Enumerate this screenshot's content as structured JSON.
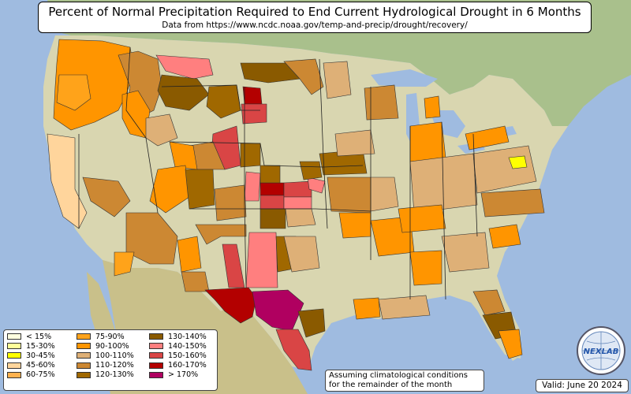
{
  "title": "Percent of Normal Precipitation Required to End Current Hydrological Drought in 6 Months",
  "subtitle": "Data from https://www.ncdc.noaa.gov/temp-and-precip/drought/recovery/",
  "legend": [
    {
      "label": "< 15%",
      "color": "#ffffe0"
    },
    {
      "label": "15-30%",
      "color": "#ffff99"
    },
    {
      "label": "30-45%",
      "color": "#ffff00"
    },
    {
      "label": "45-60%",
      "color": "#ffd59c"
    },
    {
      "label": "60-75%",
      "color": "#ffb24f"
    },
    {
      "label": "75-90%",
      "color": "#ffa31a"
    },
    {
      "label": "90-100%",
      "color": "#ff9500"
    },
    {
      "label": "100-110%",
      "color": "#deb077"
    },
    {
      "label": "110-120%",
      "color": "#cc8833"
    },
    {
      "label": "120-130%",
      "color": "#a06800"
    },
    {
      "label": "130-140%",
      "color": "#8a5a00"
    },
    {
      "label": "140-150%",
      "color": "#ff7f7f"
    },
    {
      "label": "150-160%",
      "color": "#d94545"
    },
    {
      "label": "160-170%",
      "color": "#b30000"
    },
    {
      "label": "> 170%",
      "color": "#b00060"
    }
  ],
  "assumption_note": "Assuming climatological conditions for the remainder of the month",
  "valid_date": "Valid: June 20 2024",
  "logo_text": "NEXLAB"
}
